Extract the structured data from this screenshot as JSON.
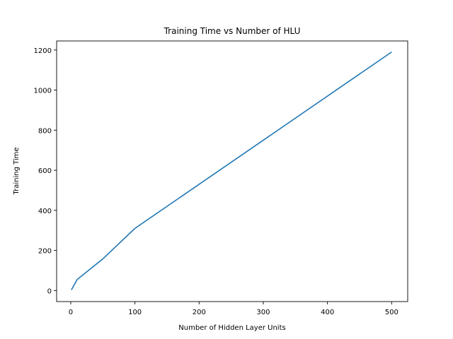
{
  "chart_data": {
    "type": "line",
    "title": "Training Time vs Number of HLU",
    "xlabel": "Number of Hidden Layer Units",
    "ylabel": "Training Time",
    "xlim": [
      -22,
      525
    ],
    "ylim": [
      -55,
      1245
    ],
    "xticks": [
      0,
      100,
      200,
      300,
      400,
      500
    ],
    "yticks": [
      0,
      200,
      400,
      600,
      800,
      1000,
      1200
    ],
    "grid": false,
    "series_color": "#1f77b4",
    "series": [
      {
        "x": [
          1,
          10,
          50,
          100,
          500
        ],
        "y": [
          3,
          55,
          158,
          310,
          1190
        ]
      }
    ]
  }
}
